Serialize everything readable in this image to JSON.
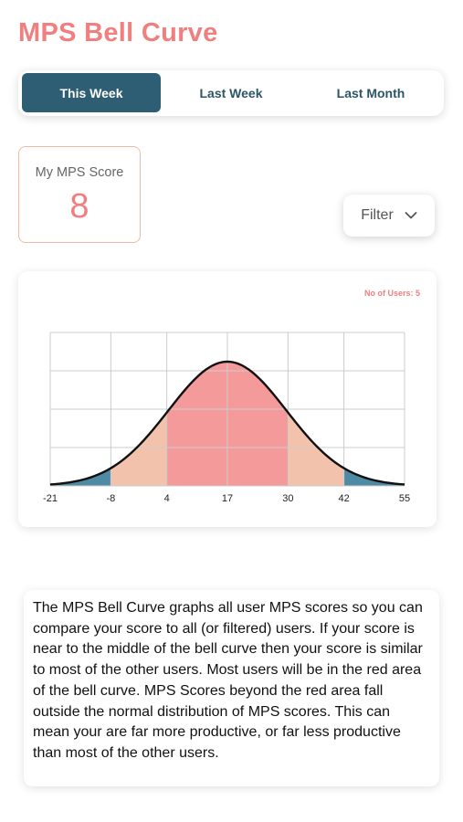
{
  "title": "MPS Bell Curve",
  "tabs": [
    {
      "label": "This Week",
      "active": true
    },
    {
      "label": "Last Week",
      "active": false
    },
    {
      "label": "Last Month",
      "active": false
    }
  ],
  "score": {
    "label": "My MPS Score",
    "value": "8"
  },
  "filter": {
    "label": "Filter",
    "icon": "chevron-down-icon"
  },
  "chart": {
    "users_label": "No of Users: 5"
  },
  "chart_data": {
    "type": "area",
    "title": "",
    "xlabel": "",
    "ylabel": "",
    "x_ticks": [
      "-21",
      "-8",
      "4",
      "17",
      "30",
      "42",
      "55"
    ],
    "xlim": [
      -21,
      55
    ],
    "mean": 17,
    "sd": 12.67,
    "grid": true,
    "bands": [
      {
        "from": -21,
        "to": -8,
        "color": "#4e8aa3"
      },
      {
        "from": -8,
        "to": 4,
        "color": "#f2c2ad"
      },
      {
        "from": 4,
        "to": 30,
        "color": "#f49a9b"
      },
      {
        "from": 30,
        "to": 42,
        "color": "#f2c2ad"
      },
      {
        "from": 42,
        "to": 55,
        "color": "#4e8aa3"
      }
    ]
  },
  "description": "The MPS Bell Curve graphs all user MPS scores so you can compare your score to all (or filtered) users. If your score is near to the middle of the bell curve then your score is similar to most of the other users. Most users will be in the red area of the bell curve. MPS Scores beyond the red area fall outside the normal distribution of MPS scores. This can mean your are far more productive, or far less productive than most of the other users.",
  "colors": {
    "accent": "#f07f80",
    "tab_active": "#2d5e73",
    "tail": "#4e8aa3",
    "peach": "#f2c2ad",
    "red": "#f49a9b"
  }
}
